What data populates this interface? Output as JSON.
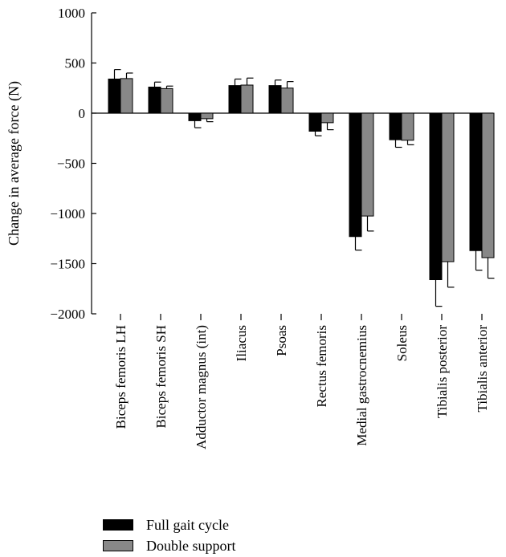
{
  "chart_data": {
    "type": "bar",
    "ylabel": "Change in average force (N)",
    "ylim": [
      -2000,
      1000
    ],
    "yticks": [
      1000,
      500,
      0,
      -500,
      -1000,
      -1500,
      -2000
    ],
    "ytick_labels": [
      "1000",
      "500",
      "0",
      "-500",
      "-1000",
      "-1500",
      "-2000"
    ],
    "categories": [
      "Biceps femoris LH",
      "Biceps femoris SH",
      "Adductor magnus (int)",
      "Iliacus",
      "Psoas",
      "Rectus femoris",
      "Medial gastrocnemius",
      "Soleus",
      "Tibialis posterior",
      "Tibialis anterior"
    ],
    "series": [
      {
        "name": "Full gait cycle",
        "color": "#000000",
        "values": [
          340,
          260,
          -75,
          275,
          275,
          -180,
          -1230,
          -265,
          -1660,
          -1370
        ],
        "errors": [
          95,
          50,
          70,
          65,
          55,
          45,
          135,
          75,
          265,
          195
        ]
      },
      {
        "name": "Double support",
        "color": "#888888",
        "values": [
          345,
          245,
          -55,
          280,
          250,
          -95,
          -1025,
          -270,
          -1480,
          -1440
        ],
        "errors": [
          55,
          25,
          30,
          70,
          65,
          70,
          150,
          45,
          255,
          205
        ]
      }
    ],
    "grid": false,
    "legend_position": "bottom-left"
  }
}
